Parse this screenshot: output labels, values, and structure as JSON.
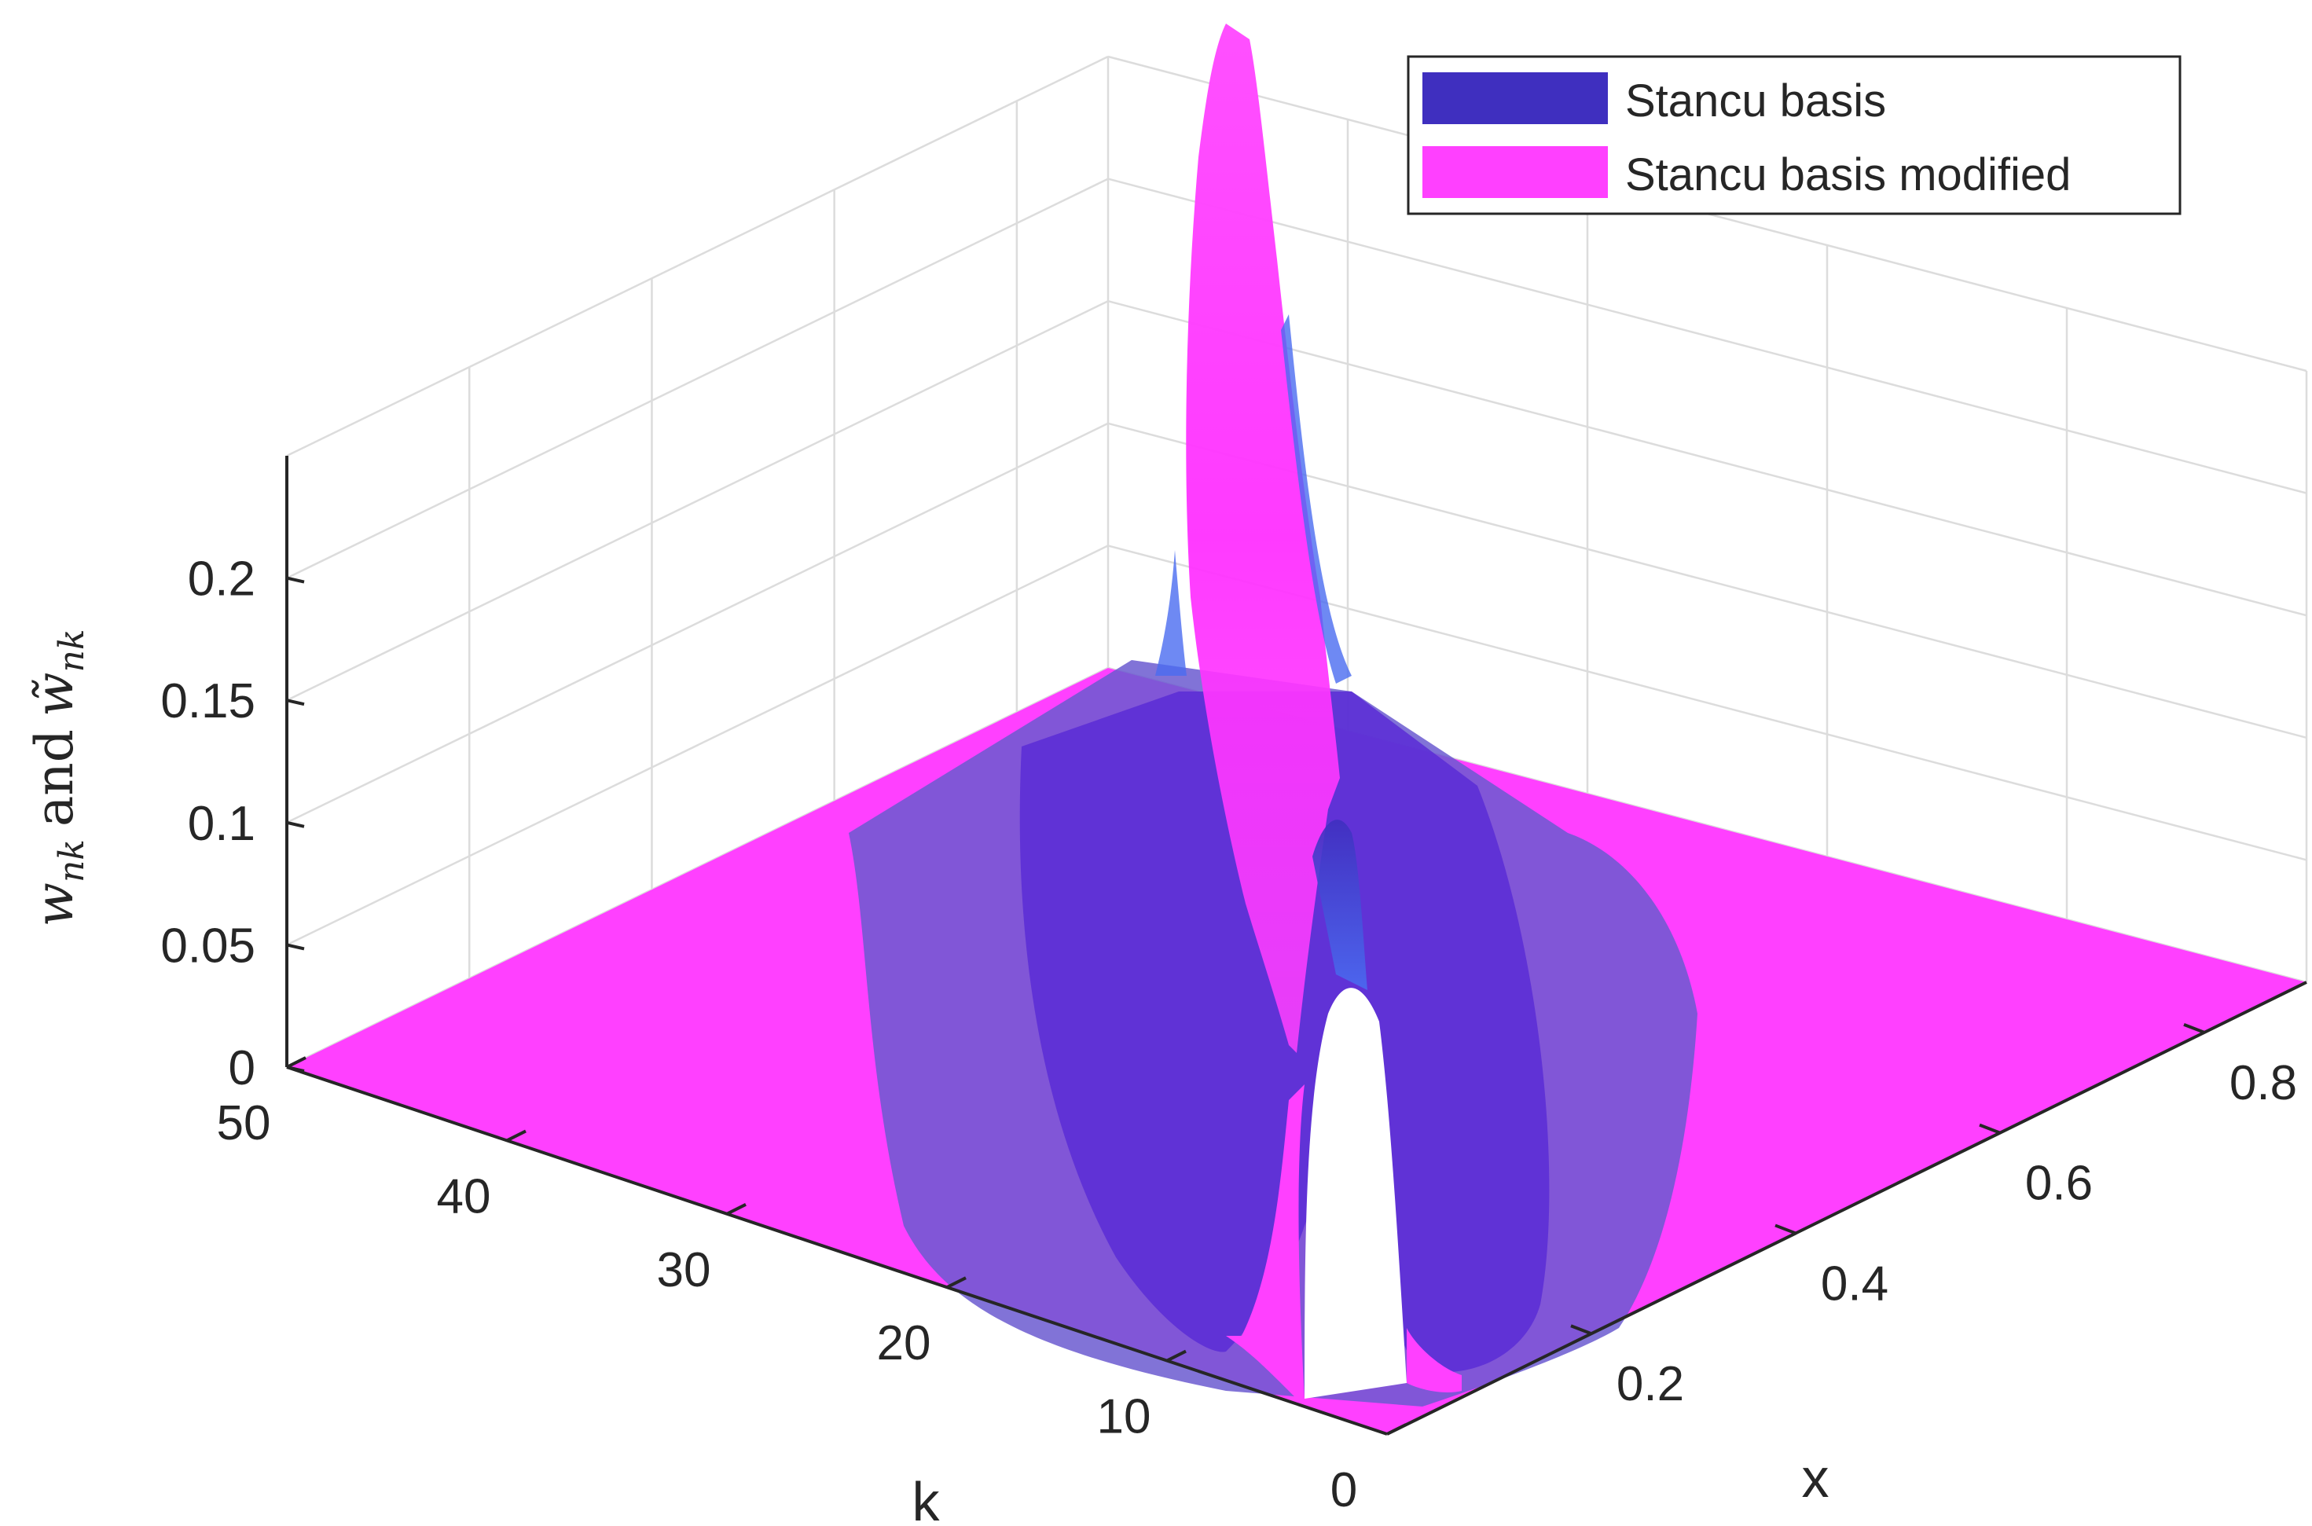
{
  "chart_data": {
    "type": "surface",
    "xlabel": "x",
    "ylabel": "k",
    "zlabel": "w_nk and w̃_nk",
    "zlabel_parts": {
      "w1": "w",
      "sub1": "nk",
      "and": "and",
      "w2": "w̃",
      "sub2": "nk"
    },
    "x_ticks": [
      "0.2",
      "0.4",
      "0.6",
      "0.8"
    ],
    "k_ticks": [
      "0",
      "10",
      "20",
      "30",
      "40",
      "50"
    ],
    "z_ticks": [
      "0",
      "0.05",
      "0.1",
      "0.15",
      "0.2"
    ],
    "xlim": [
      0,
      0.9
    ],
    "klim": [
      0,
      50
    ],
    "zlim": [
      0,
      0.25
    ],
    "grid": true,
    "legend_position": "top-right",
    "series": [
      {
        "name": "Stancu basis",
        "color": "#3f2fbf",
        "peak_value": 0.25
      },
      {
        "name": "Stancu basis modified",
        "color": "#ff40ff",
        "peak_value": 0.25
      }
    ],
    "colors": {
      "base_plane": "#ff40ff",
      "transparent_overlay": "#6b5bd0",
      "inner_band": "#5a2bd6"
    }
  }
}
